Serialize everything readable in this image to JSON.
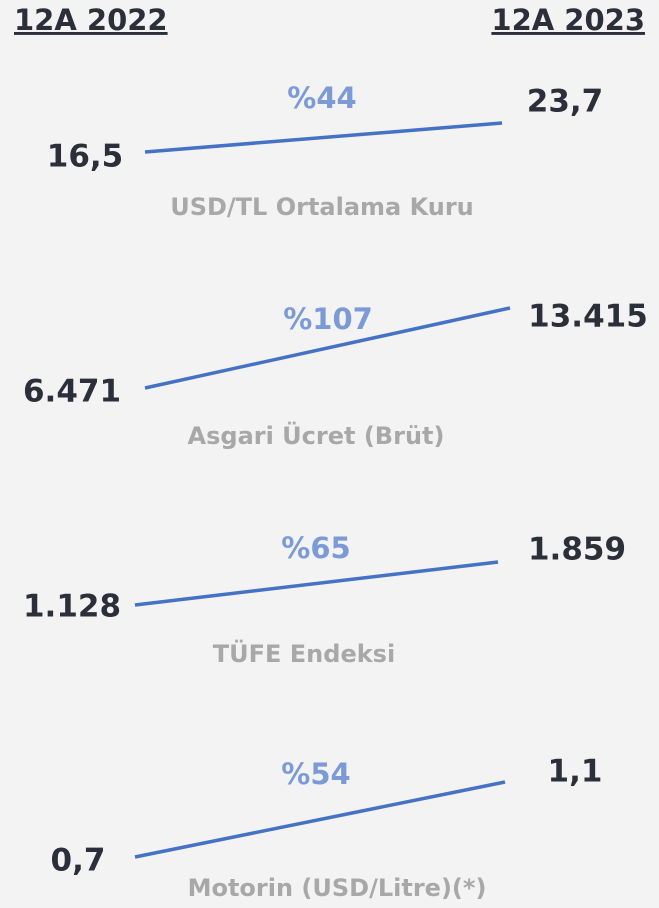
{
  "header": {
    "left": "12A 2022",
    "right": "12A 2023"
  },
  "items": [
    {
      "change": "%44",
      "start": "16,5",
      "end": "23,7",
      "label": "USD/TL Ortalama Kuru"
    },
    {
      "change": "%107",
      "start": "6.471",
      "end": "13.415",
      "label": "Asgari Ücret (Brüt)"
    },
    {
      "change": "%65",
      "start": "1.128",
      "end": "1.859",
      "label": "TÜFE Endeksi"
    },
    {
      "change": "%54",
      "start": "0,7",
      "end": "1,1",
      "label": "Motorin (USD/Litre)(*)"
    }
  ]
}
